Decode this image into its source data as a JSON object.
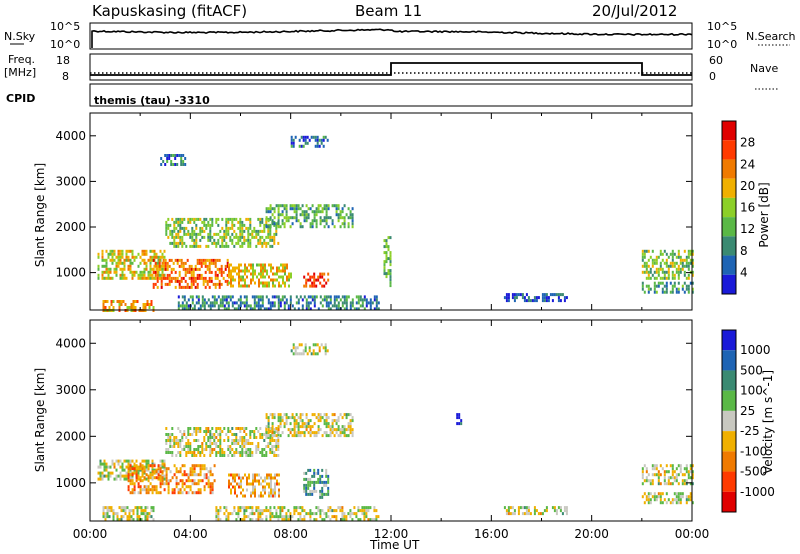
{
  "header": {
    "station": "Kapuskasing (fitACF)",
    "beam": "Beam 11",
    "date": "20/Jul/2012"
  },
  "top_panels": {
    "nsky_label": "N.Sky",
    "nsky_ticks": [
      "10^5",
      "10^0"
    ],
    "nsearch_label": "N.Search",
    "nsearch_ticks": [
      "10^5",
      "10^0"
    ],
    "freq_label": "Freq.",
    "freq_unit": "[MHz]",
    "freq_ticks": [
      "18",
      "8"
    ],
    "nave_label": "Nave",
    "nave_ticks": [
      "60",
      "0"
    ],
    "cpid_label": "CPID",
    "cpid_text": "themis (tau) -3310"
  },
  "colors": {
    "power_scale": [
      "#1a1ad8",
      "#1e64b4",
      "#3a8a72",
      "#5ab846",
      "#8ccf28",
      "#f0b000",
      "#f07a00",
      "#ff3a00",
      "#e00000"
    ],
    "velocity_scale": [
      "#1a1ad8",
      "#1e64b4",
      "#3a8a72",
      "#5ab846",
      "#c8c8c0",
      "#f0b000",
      "#f07a00",
      "#ff3a00",
      "#e00000"
    ]
  },
  "chart_data": [
    {
      "type": "heatmap",
      "name": "power",
      "xlabel": "",
      "ylabel": "Slant Range [km]",
      "xlim": [
        0,
        24
      ],
      "ylim": [
        180,
        4500
      ],
      "yticks": [
        "4000",
        "3000",
        "2000",
        "1000"
      ],
      "colorbar": {
        "label": "Power [dB]",
        "ticks": [
          "28",
          "24",
          "20",
          "16",
          "12",
          "8",
          "4"
        ]
      },
      "regions": [
        {
          "t0": 0.3,
          "t1": 3.0,
          "r0": 900,
          "r1": 1500,
          "level": 0.55
        },
        {
          "t0": 2.5,
          "t1": 5.5,
          "r0": 700,
          "r1": 1300,
          "level": 0.75
        },
        {
          "t0": 3.0,
          "t1": 7.5,
          "r0": 1600,
          "r1": 2200,
          "level": 0.45
        },
        {
          "t0": 7.0,
          "t1": 10.5,
          "r0": 2000,
          "r1": 2500,
          "level": 0.35
        },
        {
          "t0": 5.5,
          "t1": 8.0,
          "r0": 700,
          "r1": 1200,
          "level": 0.6
        },
        {
          "t0": 8.5,
          "t1": 9.5,
          "r0": 700,
          "r1": 1000,
          "level": 0.85
        },
        {
          "t0": 0.5,
          "t1": 2.5,
          "r0": 200,
          "r1": 400,
          "level": 0.65
        },
        {
          "t0": 3.5,
          "t1": 11.5,
          "r0": 200,
          "r1": 500,
          "level": 0.25
        },
        {
          "t0": 16.5,
          "t1": 19.0,
          "r0": 400,
          "r1": 550,
          "level": 0.15
        },
        {
          "t0": 22.0,
          "t1": 24.0,
          "r0": 900,
          "r1": 1500,
          "level": 0.45
        },
        {
          "t0": 22.0,
          "t1": 24.0,
          "r0": 600,
          "r1": 800,
          "level": 0.3
        },
        {
          "t0": 2.8,
          "t1": 3.8,
          "r0": 3350,
          "r1": 3600,
          "level": 0.2
        },
        {
          "t0": 8.0,
          "t1": 9.5,
          "r0": 3800,
          "r1": 4000,
          "level": 0.2
        },
        {
          "t0": 11.7,
          "t1": 12.0,
          "r0": 700,
          "r1": 1800,
          "level": 0.4
        }
      ]
    },
    {
      "type": "heatmap",
      "name": "velocity",
      "xlabel": "Time UT",
      "ylabel": "Slant Range [km]",
      "xlim": [
        0,
        24
      ],
      "ylim": [
        180,
        4500
      ],
      "xticks": [
        "00:00",
        "04:00",
        "08:00",
        "12:00",
        "16:00",
        "20:00",
        "00:00"
      ],
      "yticks": [
        "4000",
        "3000",
        "2000",
        "1000"
      ],
      "colorbar": {
        "label": "Velocity [m s^-1]",
        "ticks": [
          "1000",
          "500",
          "100",
          "25",
          "-25",
          "-100",
          "-500",
          "-1000"
        ]
      },
      "regions": [
        {
          "t0": 0.3,
          "t1": 3.0,
          "r0": 1100,
          "r1": 1500,
          "level": 0.5
        },
        {
          "t0": 3.0,
          "t1": 7.5,
          "r0": 1600,
          "r1": 2200,
          "level": 0.5
        },
        {
          "t0": 7.0,
          "t1": 10.5,
          "r0": 2000,
          "r1": 2500,
          "level": 0.5
        },
        {
          "t0": 1.5,
          "t1": 5.0,
          "r0": 800,
          "r1": 1400,
          "level": 0.32
        },
        {
          "t0": 5.5,
          "t1": 7.5,
          "r0": 700,
          "r1": 1200,
          "level": 0.38
        },
        {
          "t0": 8.5,
          "t1": 9.5,
          "r0": 700,
          "r1": 1300,
          "level": 0.68
        },
        {
          "t0": 0.5,
          "t1": 2.5,
          "r0": 200,
          "r1": 500,
          "level": 0.5
        },
        {
          "t0": 5.0,
          "t1": 11.5,
          "r0": 200,
          "r1": 500,
          "level": 0.5
        },
        {
          "t0": 16.5,
          "t1": 19.0,
          "r0": 350,
          "r1": 500,
          "level": 0.5
        },
        {
          "t0": 22.0,
          "t1": 24.0,
          "r0": 1000,
          "r1": 1400,
          "level": 0.5
        },
        {
          "t0": 22.0,
          "t1": 24.0,
          "r0": 600,
          "r1": 800,
          "level": 0.5
        },
        {
          "t0": 14.6,
          "t1": 14.8,
          "r0": 2300,
          "r1": 2500,
          "level": 0.9
        },
        {
          "t0": 8.0,
          "t1": 9.5,
          "r0": 3800,
          "r1": 4000,
          "level": 0.5
        }
      ]
    }
  ]
}
